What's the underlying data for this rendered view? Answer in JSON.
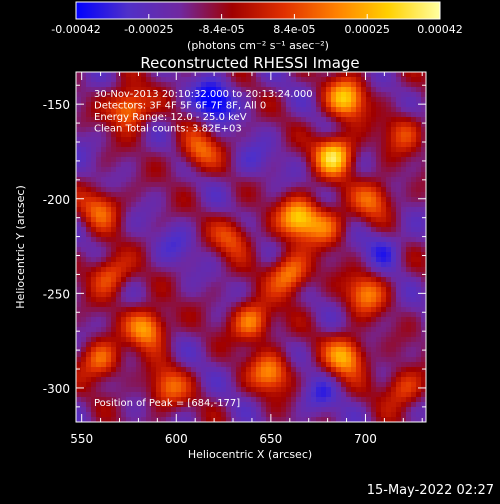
{
  "chart_data": {
    "type": "heatmap",
    "title": "Reconstructed RHESSI Image",
    "xlabel": "Heliocentric X (arcsec)",
    "ylabel": "Heliocentric Y (arcsec)",
    "xlim": [
      547,
      732
    ],
    "ylim": [
      -318,
      -133
    ],
    "x_ticks": [
      550,
      600,
      650,
      700
    ],
    "y_ticks": [
      -300,
      -250,
      -200,
      -150
    ],
    "colorbar": {
      "min": -0.00042,
      "max": 0.00042,
      "ticks": [
        "-0.00042",
        "-0.00025",
        "-8.4e-05",
        "8.4e-05",
        "0.00025",
        "0.00042"
      ],
      "unit_label": "(photons cm⁻² s⁻¹ asec⁻²)",
      "colormap": [
        "#0000ff",
        "#5030c8",
        "#7028a0",
        "#a00000",
        "#e03000",
        "#ff8000",
        "#ffd000",
        "#ffffa0"
      ]
    },
    "annotations": [
      "30-Nov-2013 20:10:32.000 to 20:13:24.000",
      "Detectors: 3F 4F 5F 6F 7F 8F, All 0",
      "Energy Range: 12.0 - 25.0 keV",
      "Clean    Total counts: 3.82E+03"
    ],
    "peak_label": "Position of Peak = [684,-177]",
    "peak_position": [
      684,
      -177
    ],
    "blobs": [
      {
        "x": 684,
        "y": -177,
        "value": 0.00042
      },
      {
        "x": 690,
        "y": -147,
        "value": 0.00036
      },
      {
        "x": 575,
        "y": -152,
        "value": 0.00034
      },
      {
        "x": 665,
        "y": -210,
        "value": 0.00038
      },
      {
        "x": 660,
        "y": -240,
        "value": 0.00032
      },
      {
        "x": 612,
        "y": -175,
        "value": 0.00022
      },
      {
        "x": 640,
        "y": -265,
        "value": 0.0003
      },
      {
        "x": 700,
        "y": -250,
        "value": 0.00025
      },
      {
        "x": 585,
        "y": -268,
        "value": 0.00034
      },
      {
        "x": 560,
        "y": -285,
        "value": 0.00026
      },
      {
        "x": 595,
        "y": -300,
        "value": 0.00022
      },
      {
        "x": 650,
        "y": -292,
        "value": 0.00028
      },
      {
        "x": 690,
        "y": -283,
        "value": 0.00033
      },
      {
        "x": 705,
        "y": -200,
        "value": 0.00022
      },
      {
        "x": 560,
        "y": -205,
        "value": 0.0002
      },
      {
        "x": 565,
        "y": -240,
        "value": 0.00024
      },
      {
        "x": 630,
        "y": -220,
        "value": 0.00018
      },
      {
        "x": 720,
        "y": -165,
        "value": 0.00016
      },
      {
        "x": 720,
        "y": -300,
        "value": 0.0002
      },
      {
        "x": 680,
        "y": -215,
        "value": 0.0002
      },
      {
        "x": 620,
        "y": -148,
        "value": -0.00035
      },
      {
        "x": 600,
        "y": -225,
        "value": -0.00016
      },
      {
        "x": 710,
        "y": -225,
        "value": -0.00022
      },
      {
        "x": 675,
        "y": -305,
        "value": -0.00018
      },
      {
        "x": 545,
        "y": -170,
        "value": -0.00012
      },
      {
        "x": 640,
        "y": -180,
        "value": -0.00016
      }
    ]
  },
  "footer_timestamp": "15-May-2022 02:27"
}
